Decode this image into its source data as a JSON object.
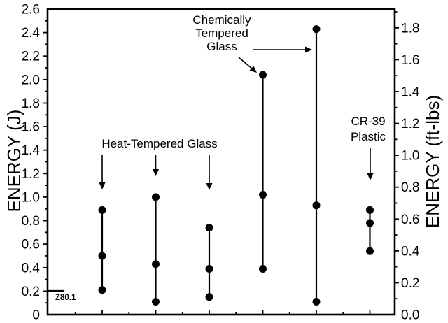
{
  "figure": {
    "background": "#ffffff",
    "ink": "#000000"
  },
  "chart_data": {
    "type": "scatter",
    "description": "Vertical min/median/max dot-and-line ranges of impact energy for six lens test columns",
    "grid": false,
    "legend": false,
    "left_axis": {
      "label": "ENERGY (J)",
      "min": 0,
      "max": 2.6,
      "major_step": 0.2,
      "minor_step": 0.1,
      "tick_labels": [
        "0",
        "0.2",
        "0.4",
        "0.6",
        "0.8",
        "1.0",
        "1.2",
        "1.4",
        "1.6",
        "1.8",
        "2.0",
        "2.2",
        "2.4",
        "2.6"
      ]
    },
    "right_axis": {
      "label": "ENERGY (ft-lbs)",
      "min": 0,
      "max": 1.8,
      "major_step": 0.2,
      "minor_step": 0.1,
      "joules_per_ftlb": 1.3558,
      "tick_labels": [
        "0.0",
        "0.2",
        "0.4",
        "0.6",
        "0.8",
        "1.0",
        "1.2",
        "1.4",
        "1.6",
        "1.8"
      ]
    },
    "x_axis": {
      "labels": [],
      "tick_style": "major tick under each data column, minor tick between columns"
    },
    "groups": [
      {
        "label": "Heat-Tempered Glass",
        "columns": [
          {
            "x_index": 0,
            "values_J": [
              0.21,
              0.5,
              0.89
            ]
          },
          {
            "x_index": 1,
            "values_J": [
              0.11,
              0.43,
              1.0
            ]
          },
          {
            "x_index": 2,
            "values_J": [
              0.15,
              0.39,
              0.74
            ]
          }
        ]
      },
      {
        "label": "Chemically Tempered Glass",
        "columns": [
          {
            "x_index": 3,
            "values_J": [
              0.39,
              1.02,
              2.04
            ]
          },
          {
            "x_index": 4,
            "values_J": [
              0.11,
              0.93,
              2.43
            ]
          }
        ]
      },
      {
        "label": "CR-39 Plastic",
        "columns": [
          {
            "x_index": 5,
            "values_J": [
              0.54,
              0.78,
              0.89
            ]
          }
        ]
      }
    ],
    "reference_line": {
      "label": "Z80.1",
      "value_J": 0.2
    },
    "annotations": [
      {
        "id": "heat",
        "text": "Heat-Tempered Glass",
        "arrow_targets_x_index": [
          0,
          1,
          2
        ]
      },
      {
        "id": "chem",
        "text": "Chemically\nTempered\nGlass",
        "arrow_targets_x_index": [
          3,
          4
        ]
      },
      {
        "id": "cr39",
        "text": "CR-39\nPlastic",
        "arrow_targets_x_index": [
          5
        ]
      }
    ]
  }
}
